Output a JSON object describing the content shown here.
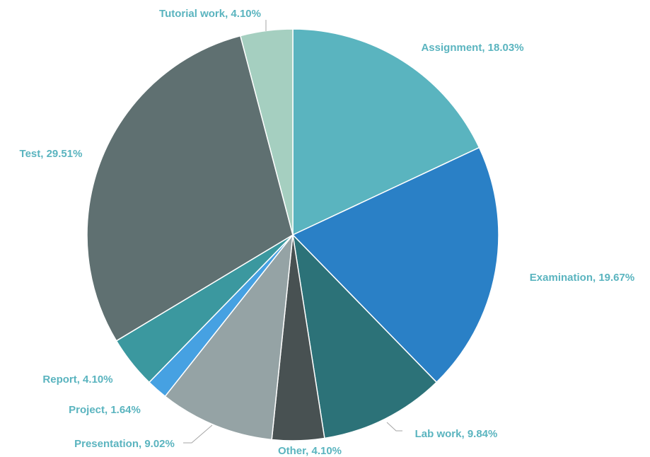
{
  "chart_data": {
    "type": "pie",
    "title": "",
    "legend": "none",
    "label_color": "#5ab4bf",
    "slices": [
      {
        "label": "Assignment",
        "value": 18.03,
        "value_label": "18.03%",
        "color": "#5ab4bf"
      },
      {
        "label": "Examination",
        "value": 19.67,
        "value_label": "19.67%",
        "color": "#2a80c6"
      },
      {
        "label": "Lab work",
        "value": 9.84,
        "value_label": "9.84%",
        "color": "#2c7278"
      },
      {
        "label": "Other",
        "value": 4.1,
        "value_label": "4.10%",
        "color": "#485152"
      },
      {
        "label": "Presentation",
        "value": 9.02,
        "value_label": "9.02%",
        "color": "#95a3a5"
      },
      {
        "label": "Project",
        "value": 1.64,
        "value_label": "1.64%",
        "color": "#46a1e2"
      },
      {
        "label": "Report",
        "value": 4.1,
        "value_label": "4.10%",
        "color": "#3b989f"
      },
      {
        "label": "Test",
        "value": 29.51,
        "value_label": "29.51%",
        "color": "#5f7071"
      },
      {
        "label": "Tutorial work",
        "value": 4.1,
        "value_label": "4.10%",
        "color": "#a5cfc0"
      }
    ]
  }
}
